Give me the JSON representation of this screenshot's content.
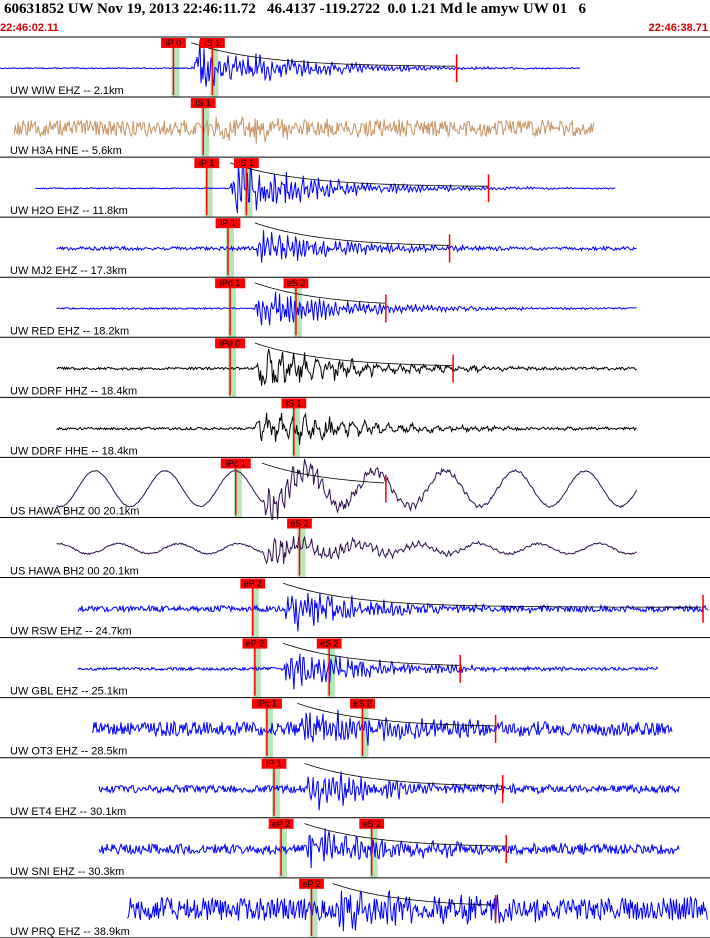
{
  "header": {
    "title": "60631852 UW Nov 19, 2013 22:46:11.72   46.4137 -119.2722  0.0 1.21 Md le amyw UW 01   6",
    "start_time": "22:46:02.11",
    "end_time": "22:46:38.71"
  },
  "colors": {
    "blue": "#0000ff",
    "tan": "#c89664",
    "black": "#000000",
    "purple": "#301050",
    "pick": "#ff0000",
    "window": "#b8e4b8",
    "coda": "#000000"
  },
  "chart_data": {
    "type": "seismogram",
    "time_range": [
      "22:46:02.11",
      "22:46:38.71"
    ],
    "traces": [
      {
        "label": "UW WIW EHZ -- 2.1km",
        "color": "blue",
        "start": 0.0,
        "end": 0.82,
        "onset": 0.27,
        "amp": 1.0,
        "noise": 0.02,
        "period": 4,
        "picks": [
          {
            "label": "iP 0",
            "x": 0.245
          },
          {
            "label": "iS 1",
            "x": 0.3
          }
        ],
        "coda": true,
        "end_mark": 0.645
      },
      {
        "label": "UW H3A HNE -- 5.6km",
        "color": "tan",
        "start": 0.02,
        "end": 0.84,
        "onset": 0.3,
        "amp": 0.45,
        "noise": 0.32,
        "period": 3,
        "picks": [
          {
            "label": "iS 1",
            "x": 0.287
          }
        ],
        "coda": false
      },
      {
        "label": "UW H2O EHZ -- 11.8km",
        "color": "blue",
        "start": 0.05,
        "end": 0.87,
        "onset": 0.325,
        "amp": 1.0,
        "noise": 0.02,
        "period": 4,
        "picks": [
          {
            "label": "iP 1",
            "x": 0.292
          },
          {
            "label": "iS 1",
            "x": 0.348
          }
        ],
        "coda": true,
        "end_mark": 0.69
      },
      {
        "label": "UW MJ2 EHZ -- 17.3km",
        "color": "blue",
        "start": 0.08,
        "end": 0.9,
        "onset": 0.36,
        "amp": 0.65,
        "noise": 0.07,
        "period": 4,
        "picks": [
          {
            "label": "iP 1",
            "x": 0.322
          }
        ],
        "coda": true,
        "end_mark": 0.635
      },
      {
        "label": "UW RED EHZ -- 18.2km",
        "color": "blue",
        "start": 0.08,
        "end": 0.9,
        "onset": 0.36,
        "amp": 0.75,
        "noise": 0.03,
        "period": 4,
        "picks": [
          {
            "label": "iPd 1",
            "x": 0.325
          },
          {
            "label": "eS 2",
            "x": 0.418
          }
        ],
        "coda": true,
        "end_mark": 0.545
      },
      {
        "label": "UW DDRF HHZ -- 18.4km",
        "color": "black",
        "start": 0.08,
        "end": 0.9,
        "onset": 0.36,
        "amp": 0.9,
        "noise": 0.05,
        "period": 12,
        "picks": [
          {
            "label": "iPd 0",
            "x": 0.325
          }
        ],
        "coda": true,
        "end_mark": 0.64
      },
      {
        "label": "UW DDRF HHE -- 18.4km",
        "color": "black",
        "start": 0.08,
        "end": 0.9,
        "onset": 0.36,
        "amp": 0.8,
        "noise": 0.05,
        "period": 12,
        "picks": [
          {
            "label": "iS 1",
            "x": 0.415
          }
        ],
        "coda": false
      },
      {
        "label": "US HAWA BHZ 00 20.1km",
        "color": "purple",
        "start": 0.08,
        "end": 0.9,
        "onset": 0.37,
        "amp": 0.7,
        "noise": 0.02,
        "period": 6,
        "lp_amp": 0.7,
        "lp_period": 70,
        "picks": [
          {
            "label": "iPc 1",
            "x": 0.333
          }
        ],
        "coda": true,
        "end_mark": 0.545
      },
      {
        "label": "US HAWA BH2 00 20.1km",
        "color": "purple",
        "start": 0.08,
        "end": 0.9,
        "onset": 0.37,
        "amp": 0.6,
        "noise": 0.03,
        "period": 6,
        "lp_amp": 0.2,
        "lp_period": 60,
        "picks": [
          {
            "label": "eS 2",
            "x": 0.423
          }
        ],
        "coda": false
      },
      {
        "label": "UW RSW EHZ -- 24.7km",
        "color": "blue",
        "start": 0.11,
        "end": 1.0,
        "onset": 0.4,
        "amp": 0.8,
        "noise": 0.12,
        "period": 4,
        "picks": [
          {
            "label": "eP 2",
            "x": 0.357
          }
        ],
        "coda": true,
        "end_mark": 0.993
      },
      {
        "label": "UW GBL EHZ -- 25.1km",
        "color": "blue",
        "start": 0.11,
        "end": 0.93,
        "onset": 0.4,
        "amp": 0.75,
        "noise": 0.06,
        "period": 4,
        "picks": [
          {
            "label": "eP 2",
            "x": 0.36
          },
          {
            "label": "eS 2",
            "x": 0.465
          }
        ],
        "coda": true,
        "end_mark": 0.65
      },
      {
        "label": "UW OT3 EHZ -- 28.5km",
        "color": "blue",
        "start": 0.13,
        "end": 0.95,
        "onset": 0.42,
        "amp": 0.75,
        "noise": 0.28,
        "period": 4,
        "picks": [
          {
            "label": "iPc 1",
            "x": 0.377
          },
          {
            "label": "eS 2",
            "x": 0.512
          }
        ],
        "coda": true,
        "end_mark": 0.7
      },
      {
        "label": "UW ET4 EHZ -- 30.1km",
        "color": "blue",
        "start": 0.14,
        "end": 0.96,
        "onset": 0.43,
        "amp": 0.75,
        "noise": 0.15,
        "period": 4,
        "picks": [
          {
            "label": "iP 1",
            "x": 0.387
          }
        ],
        "coda": true,
        "end_mark": 0.71
      },
      {
        "label": "UW SNI EHZ -- 30.3km",
        "color": "blue",
        "start": 0.14,
        "end": 0.96,
        "onset": 0.43,
        "amp": 0.75,
        "noise": 0.2,
        "period": 4,
        "picks": [
          {
            "label": "eP 2",
            "x": 0.397
          },
          {
            "label": "eS 2",
            "x": 0.525
          }
        ],
        "coda": true,
        "end_mark": 0.715
      },
      {
        "label": "UW PRQ EHZ -- 38.9km",
        "color": "blue",
        "start": 0.18,
        "end": 1.0,
        "onset": 0.47,
        "amp": 0.8,
        "noise": 0.45,
        "period": 4,
        "picks": [
          {
            "label": "eP 2",
            "x": 0.44
          }
        ],
        "coda": true,
        "end_mark": 0.7
      }
    ]
  }
}
